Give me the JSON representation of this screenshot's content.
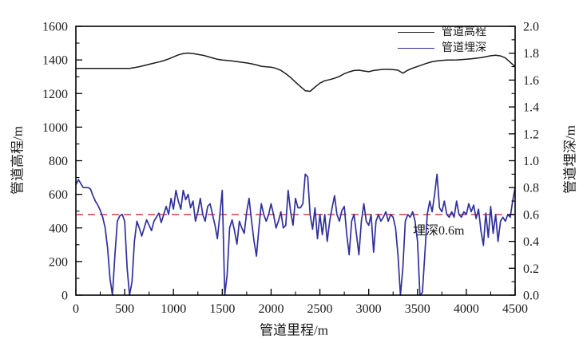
{
  "chart_data": {
    "type": "line",
    "title": "",
    "xlabel": "管道里程/m",
    "ylabel_left": "管道高程/m",
    "ylabel_right": "管道埋深/m",
    "x_range": [
      0,
      4500
    ],
    "y_left_range": [
      0,
      1600
    ],
    "y_right_range": [
      0.0,
      2.0
    ],
    "x_ticks": [
      "0",
      "500",
      "1000",
      "1500",
      "2000",
      "2500",
      "3000",
      "3500",
      "4000",
      "4500"
    ],
    "y_left_ticks": [
      "0",
      "200",
      "400",
      "600",
      "800",
      "1000",
      "1200",
      "1400",
      "1600"
    ],
    "y_right_ticks": [
      "0.0",
      "0.2",
      "0.4",
      "0.6",
      "0.8",
      "1.0",
      "1.2",
      "1.4",
      "1.6",
      "1.8",
      "2.0"
    ],
    "grid": false,
    "legend_position": "top-right-inside",
    "legend": [
      {
        "label": "管道高程",
        "color": "#1c1c1c"
      },
      {
        "label": "管道埋深",
        "color": "#30309c"
      }
    ],
    "reference_line": {
      "axis": "right",
      "value": 0.6,
      "color": "#d95f5f",
      "style": "dashed",
      "label": "埋深0.6m"
    },
    "series": [
      {
        "name": "管道高程",
        "axis": "left",
        "color": "#1c1c1c",
        "x": [
          0,
          50,
          100,
          150,
          200,
          250,
          300,
          350,
          400,
          450,
          500,
          550,
          600,
          650,
          700,
          750,
          800,
          850,
          900,
          950,
          1000,
          1050,
          1100,
          1150,
          1200,
          1250,
          1300,
          1350,
          1400,
          1450,
          1500,
          1550,
          1600,
          1650,
          1700,
          1750,
          1800,
          1850,
          1900,
          1950,
          2000,
          2050,
          2100,
          2150,
          2200,
          2250,
          2300,
          2350,
          2400,
          2450,
          2500,
          2550,
          2600,
          2650,
          2700,
          2750,
          2800,
          2850,
          2900,
          2950,
          3000,
          3050,
          3100,
          3150,
          3200,
          3250,
          3300,
          3350,
          3400,
          3450,
          3500,
          3550,
          3600,
          3650,
          3700,
          3750,
          3800,
          3850,
          3900,
          3950,
          4000,
          4050,
          4100,
          4150,
          4200,
          4250,
          4300,
          4350,
          4400,
          4450,
          4500
        ],
        "y": [
          1350,
          1350,
          1350,
          1350,
          1350,
          1350,
          1350,
          1350,
          1350,
          1350,
          1350,
          1350,
          1354,
          1360,
          1367,
          1374,
          1381,
          1388,
          1396,
          1406,
          1418,
          1430,
          1438,
          1441,
          1438,
          1433,
          1428,
          1420,
          1412,
          1404,
          1399,
          1397,
          1394,
          1390,
          1386,
          1382,
          1377,
          1370,
          1362,
          1359,
          1357,
          1350,
          1338,
          1318,
          1295,
          1268,
          1242,
          1217,
          1213,
          1238,
          1262,
          1276,
          1283,
          1291,
          1302,
          1318,
          1329,
          1337,
          1339,
          1334,
          1330,
          1337,
          1341,
          1344,
          1344,
          1342,
          1339,
          1321,
          1339,
          1351,
          1361,
          1371,
          1381,
          1389,
          1394,
          1397,
          1399,
          1399,
          1400,
          1402,
          1404,
          1407,
          1410,
          1414,
          1419,
          1425,
          1428,
          1424,
          1412,
          1386,
          1360
        ]
      },
      {
        "name": "管道埋深",
        "axis": "right",
        "color": "#30309c",
        "x": [
          0,
          25,
          50,
          75,
          100,
          125,
          150,
          175,
          200,
          225,
          250,
          275,
          300,
          325,
          350,
          375,
          400,
          425,
          450,
          475,
          500,
          525,
          550,
          575,
          600,
          625,
          650,
          675,
          700,
          725,
          750,
          775,
          800,
          825,
          850,
          875,
          900,
          925,
          950,
          975,
          1000,
          1025,
          1050,
          1075,
          1100,
          1125,
          1150,
          1175,
          1200,
          1225,
          1250,
          1275,
          1300,
          1325,
          1350,
          1375,
          1400,
          1425,
          1450,
          1475,
          1500,
          1525,
          1550,
          1575,
          1600,
          1625,
          1650,
          1675,
          1700,
          1725,
          1750,
          1775,
          1800,
          1825,
          1850,
          1875,
          1900,
          1925,
          1950,
          1975,
          2000,
          2025,
          2050,
          2075,
          2100,
          2125,
          2150,
          2175,
          2200,
          2225,
          2250,
          2275,
          2300,
          2325,
          2350,
          2375,
          2400,
          2425,
          2450,
          2475,
          2500,
          2525,
          2550,
          2575,
          2600,
          2625,
          2650,
          2675,
          2700,
          2725,
          2750,
          2775,
          2800,
          2825,
          2850,
          2875,
          2900,
          2925,
          2950,
          2975,
          3000,
          3025,
          3050,
          3075,
          3100,
          3125,
          3150,
          3175,
          3200,
          3225,
          3250,
          3275,
          3300,
          3325,
          3350,
          3375,
          3400,
          3425,
          3450,
          3475,
          3500,
          3525,
          3550,
          3575,
          3600,
          3625,
          3650,
          3675,
          3700,
          3725,
          3750,
          3775,
          3800,
          3825,
          3850,
          3875,
          3900,
          3925,
          3950,
          3975,
          4000,
          4025,
          4050,
          4075,
          4100,
          4125,
          4150,
          4175,
          4200,
          4225,
          4250,
          4275,
          4300,
          4325,
          4350,
          4375,
          4400,
          4425,
          4450,
          4475,
          4500
        ],
        "y": [
          0.82,
          0.86,
          0.83,
          0.8,
          0.8,
          0.8,
          0.79,
          0.74,
          0.7,
          0.67,
          0.63,
          0.58,
          0.5,
          0.35,
          0.12,
          0.0,
          0.3,
          0.55,
          0.59,
          0.6,
          0.55,
          0.2,
          0.0,
          0.1,
          0.4,
          0.55,
          0.5,
          0.44,
          0.5,
          0.56,
          0.52,
          0.48,
          0.55,
          0.58,
          0.61,
          0.54,
          0.6,
          0.66,
          0.6,
          0.72,
          0.64,
          0.78,
          0.7,
          0.64,
          0.78,
          0.71,
          0.75,
          0.65,
          0.7,
          0.55,
          0.62,
          0.72,
          0.6,
          0.55,
          0.66,
          0.68,
          0.6,
          0.52,
          0.42,
          0.6,
          0.78,
          0.0,
          0.15,
          0.5,
          0.56,
          0.48,
          0.38,
          0.55,
          0.5,
          0.46,
          0.62,
          0.72,
          0.55,
          0.4,
          0.29,
          0.5,
          0.68,
          0.6,
          0.55,
          0.6,
          0.68,
          0.6,
          0.5,
          0.55,
          0.62,
          0.5,
          0.52,
          0.78,
          0.62,
          0.52,
          0.72,
          0.65,
          0.65,
          0.68,
          0.9,
          0.88,
          0.6,
          0.49,
          0.65,
          0.42,
          0.6,
          0.45,
          0.6,
          0.4,
          0.55,
          0.65,
          0.74,
          0.6,
          0.55,
          0.63,
          0.66,
          0.45,
          0.3,
          0.55,
          0.6,
          0.45,
          0.3,
          0.55,
          0.68,
          0.55,
          0.52,
          0.6,
          0.32,
          0.55,
          0.6,
          0.55,
          0.58,
          0.62,
          0.55,
          0.6,
          0.58,
          0.5,
          0.3,
          0.0,
          0.2,
          0.55,
          0.6,
          0.58,
          0.62,
          0.55,
          0.4,
          0.0,
          0.02,
          0.3,
          0.6,
          0.7,
          0.62,
          0.75,
          0.9,
          0.65,
          0.62,
          0.7,
          0.6,
          0.58,
          0.62,
          0.58,
          0.7,
          0.6,
          0.58,
          0.62,
          0.6,
          0.68,
          0.62,
          0.67,
          0.57,
          0.64,
          0.48,
          0.37,
          0.61,
          0.43,
          0.66,
          0.46,
          0.6,
          0.4,
          0.55,
          0.58,
          0.55,
          0.6,
          0.58,
          0.7,
          0.8
        ]
      }
    ]
  }
}
